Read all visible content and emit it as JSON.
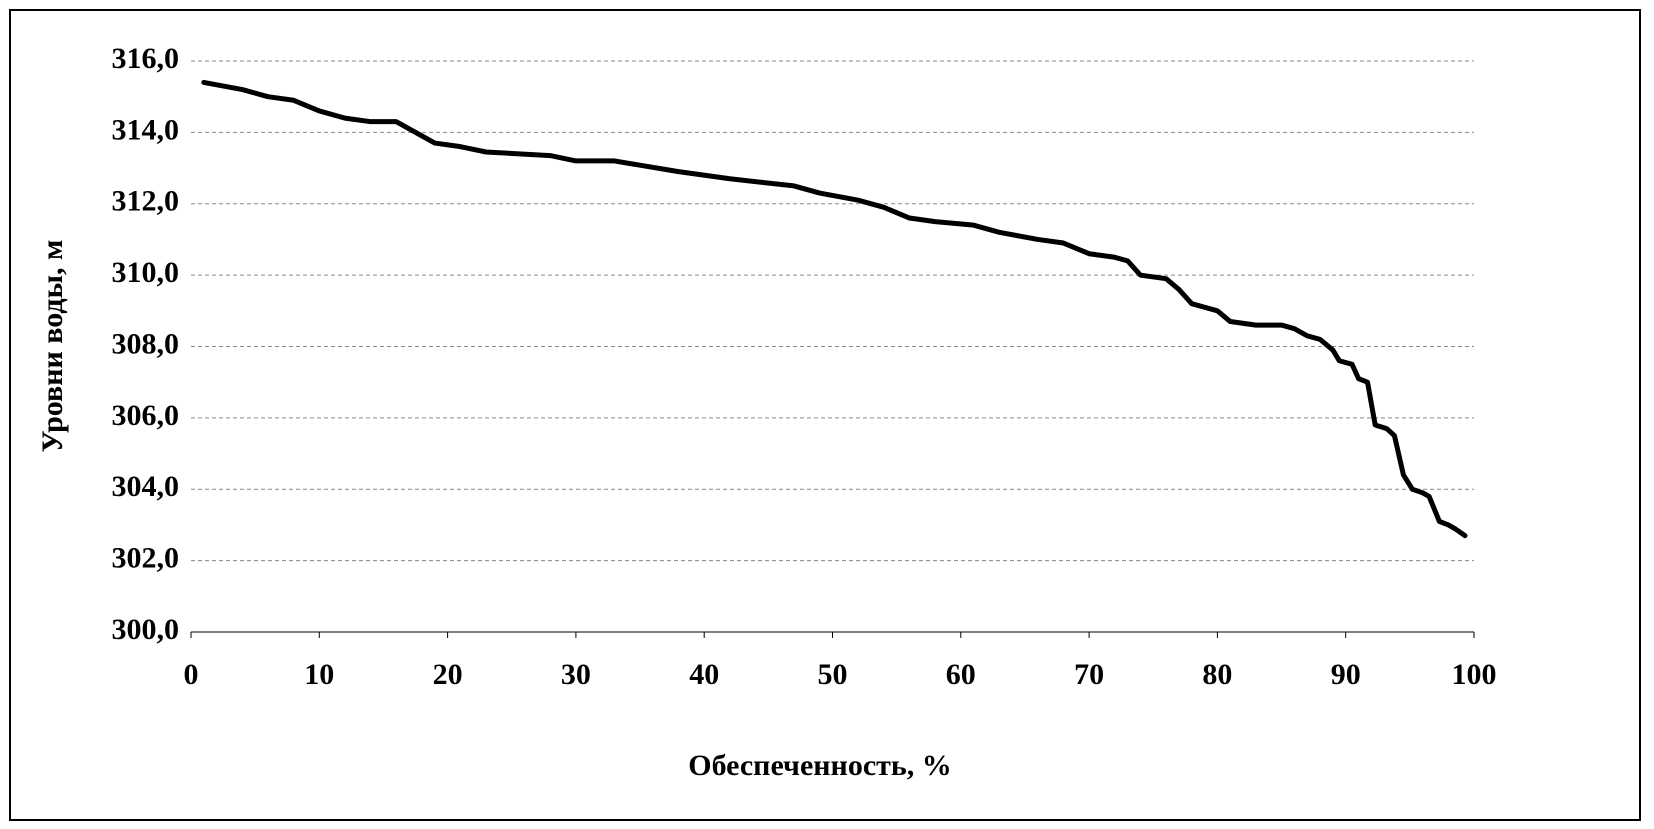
{
  "chart_data": {
    "type": "line",
    "x_label": "Обеспеченность, %",
    "y_label": "Уровни воды, м",
    "x": [
      1,
      4,
      6,
      8,
      10,
      12,
      14,
      16,
      18,
      19,
      21,
      23,
      28,
      30,
      33,
      38,
      42,
      47,
      49,
      52,
      54,
      56,
      58,
      61,
      63,
      66,
      68,
      70,
      72,
      73,
      74,
      76,
      77,
      78,
      80,
      81,
      83,
      85,
      86,
      87,
      88,
      89,
      89.5,
      90.5,
      91,
      91.7,
      92.3,
      93.2,
      93.8,
      94.5,
      95.2,
      96,
      96.5,
      97.3,
      98,
      98.5,
      99.3
    ],
    "series": [
      {
        "color": "#000000",
        "values": [
          315.4,
          315.2,
          315.0,
          314.9,
          314.6,
          314.4,
          314.3,
          314.3,
          313.9,
          313.7,
          313.6,
          313.45,
          313.35,
          313.2,
          313.2,
          312.9,
          312.7,
          312.5,
          312.3,
          312.1,
          311.9,
          311.6,
          311.5,
          311.4,
          311.2,
          311.0,
          310.9,
          310.6,
          310.5,
          310.4,
          310.0,
          309.9,
          309.6,
          309.2,
          309.0,
          308.7,
          308.6,
          308.6,
          308.5,
          308.3,
          308.2,
          307.9,
          307.6,
          307.5,
          307.1,
          307.0,
          305.8,
          305.7,
          305.5,
          304.4,
          304.0,
          303.9,
          303.8,
          303.1,
          303.0,
          302.9,
          302.7
        ]
      }
    ],
    "xlim": [
      0,
      100
    ],
    "xticks": [
      0,
      10,
      20,
      30,
      40,
      50,
      60,
      70,
      80,
      90,
      100
    ],
    "ylim": [
      300,
      316
    ],
    "yticks": [
      {
        "value": 300,
        "label": "300,0"
      },
      {
        "value": 302,
        "label": "302,0"
      },
      {
        "value": 304,
        "label": "304,0"
      },
      {
        "value": 306,
        "label": "306,0"
      },
      {
        "value": 308,
        "label": "308,0"
      },
      {
        "value": 310,
        "label": "310,0"
      },
      {
        "value": 312,
        "label": "312,0"
      },
      {
        "value": 314,
        "label": "314,0"
      },
      {
        "value": 316,
        "label": "316,0"
      }
    ],
    "grid": true
  }
}
